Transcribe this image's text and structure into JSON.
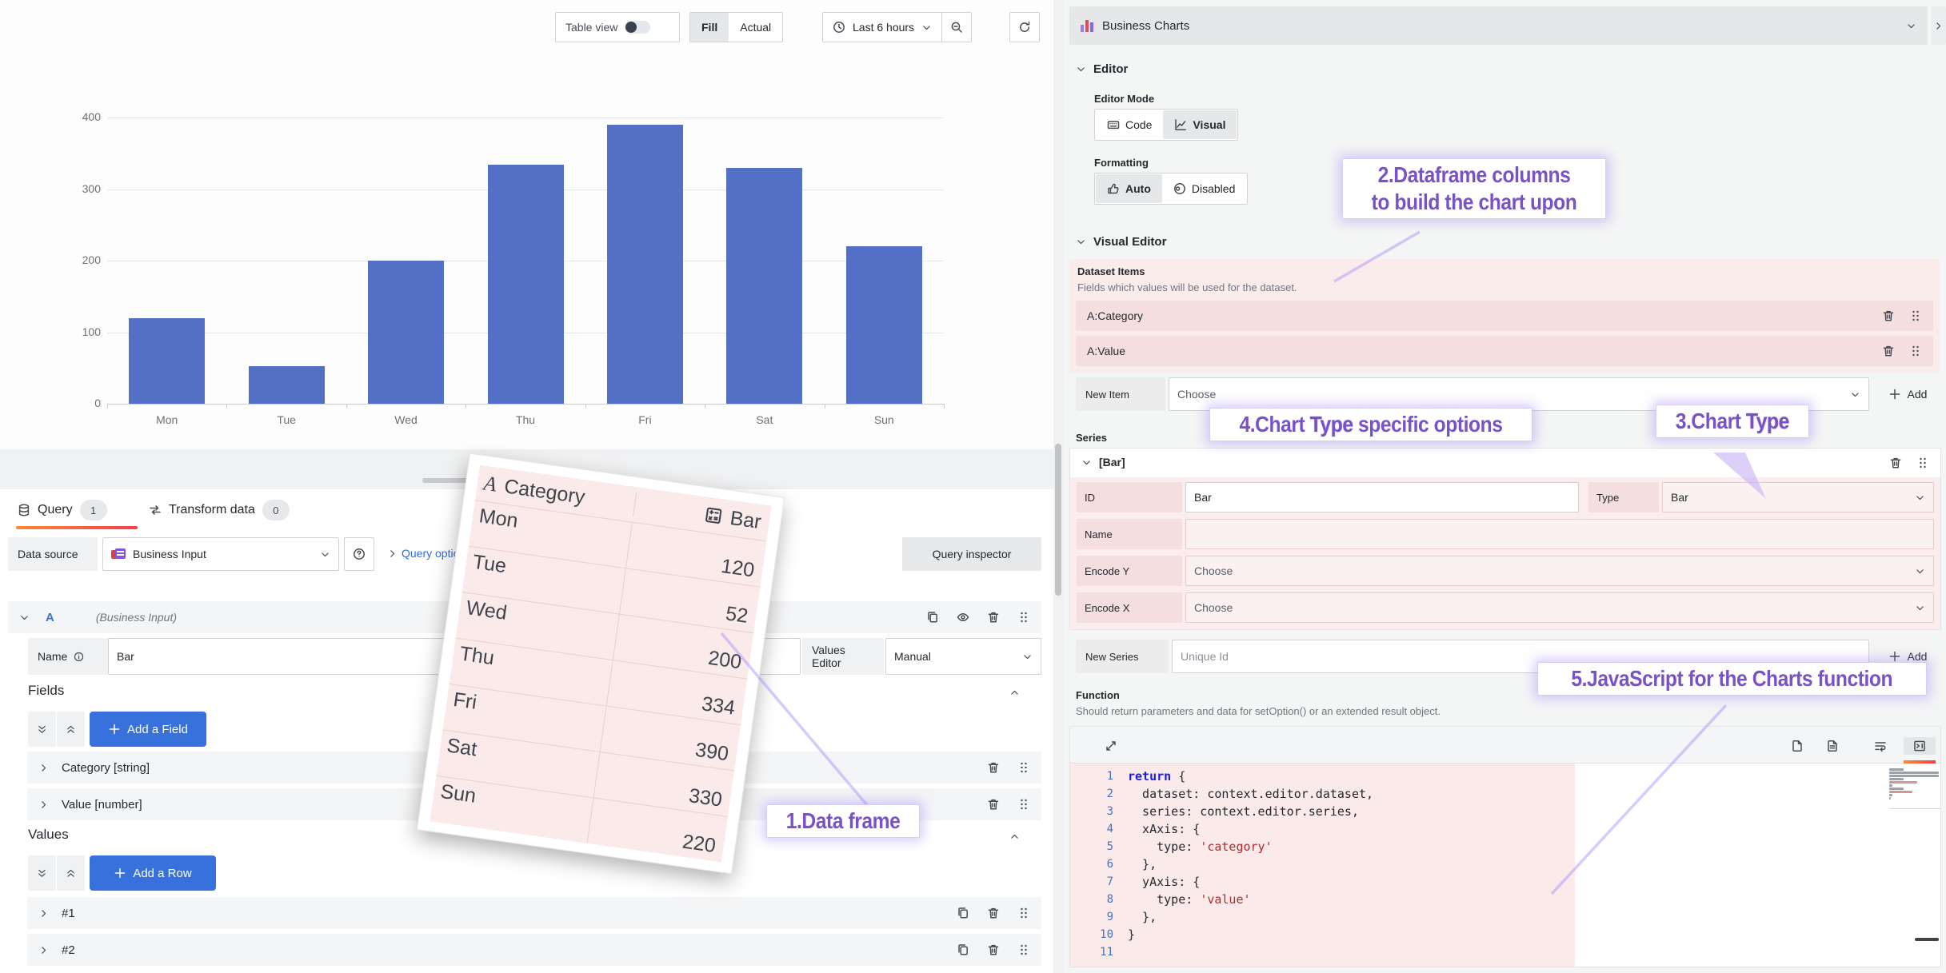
{
  "toolbar": {
    "table_view": "Table view",
    "fill": "Fill",
    "actual": "Actual",
    "time_range": "Last 6 hours"
  },
  "chart_data": {
    "type": "bar",
    "categories": [
      "Mon",
      "Tue",
      "Wed",
      "Thu",
      "Fri",
      "Sat",
      "Sun"
    ],
    "values": [
      120,
      52,
      200,
      334,
      390,
      330,
      220
    ],
    "title": "",
    "xlabel": "",
    "ylabel": "",
    "ylim": [
      0,
      400
    ],
    "yticks": [
      0,
      100,
      200,
      300,
      400
    ],
    "bar_color": "#5470C6",
    "grid": true,
    "legend": "none"
  },
  "query_panel": {
    "tabs": [
      {
        "label": "Query",
        "badge": "1"
      },
      {
        "label": "Transform data",
        "badge": "0"
      }
    ],
    "datasource_label": "Data source",
    "datasource_value": "Business Input",
    "query_options": "Query options",
    "query_inspector": "Query inspector",
    "ref_id": "A",
    "ref_note": "(Business Input)",
    "name_label": "Name",
    "name_value": "Bar",
    "values_editor_label": "Values Editor",
    "values_editor_value": "Manual",
    "fields_title": "Fields",
    "add_field": "Add a Field",
    "fields": [
      {
        "label": "Category [string]"
      },
      {
        "label": "Value [number]"
      }
    ],
    "values_title": "Values",
    "add_row": "Add a Row",
    "rows": [
      {
        "label": "#1"
      },
      {
        "label": "#2"
      }
    ]
  },
  "dataframe_card": {
    "col1": "Category",
    "col2": "Bar",
    "rows": [
      {
        "day": "Mon",
        "value": "120"
      },
      {
        "day": "Tue",
        "value": "52"
      },
      {
        "day": "Wed",
        "value": "200"
      },
      {
        "day": "Thu",
        "value": "334"
      },
      {
        "day": "Fri",
        "value": "390"
      },
      {
        "day": "Sat",
        "value": "330"
      },
      {
        "day": "Sun",
        "value": "220"
      }
    ]
  },
  "options_panel": {
    "title": "Business Charts",
    "editor_section": "Editor",
    "editor_mode_label": "Editor Mode",
    "code_mode": "Code",
    "visual_mode": "Visual",
    "formatting_label": "Formatting",
    "auto": "Auto",
    "disabled": "Disabled",
    "visual_editor_section": "Visual Editor",
    "dataset_items_label": "Dataset Items",
    "dataset_items_desc": "Fields which values will be used for the dataset.",
    "dataset_items": [
      {
        "label": "A:Category"
      },
      {
        "label": "A:Value"
      }
    ],
    "new_item_label": "New Item",
    "choose": "Choose",
    "add": "Add",
    "series_label": "Series",
    "series_group": "[Bar]",
    "id_label": "ID",
    "id_value": "Bar",
    "type_label": "Type",
    "type_value": "Bar",
    "name_label": "Name",
    "encode_y_label": "Encode Y",
    "encode_x_label": "Encode X",
    "new_series_label": "New Series",
    "new_series_placeholder": "Unique Id",
    "function_label": "Function",
    "function_desc": "Should return parameters and data for setOption() or an extended result object.",
    "code_lines": [
      "return {",
      "  dataset: context.editor.dataset,",
      "  series: context.editor.series,",
      "  xAxis: {",
      "    type: 'category'",
      "  },",
      "  yAxis: {",
      "    type: 'value'",
      "  },",
      "}",
      ""
    ]
  },
  "annotations": {
    "a1": {
      "text": "1.Data frame"
    },
    "a2": {
      "line1": "2.Dataframe columns",
      "line2": "to build the chart upon"
    },
    "a3": {
      "pre": "3.Chart ",
      "bold": "Type",
      "post": ""
    },
    "a4": {
      "pre": "4.Chart ",
      "bold": "Type",
      "post": " specific options"
    },
    "a5": {
      "text": "5.JavaScript for the Charts function"
    }
  },
  "colors": {
    "accent_blue": "#3871DC",
    "bar_blue": "#5470C6",
    "tab_gradient_start": "#FF8833",
    "tab_gradient_end": "#F53E4C",
    "highlight_pink": "#FBECEC",
    "highlight_pink_dark": "#F5DEDF",
    "annotation_purple": "#7A52C8"
  }
}
